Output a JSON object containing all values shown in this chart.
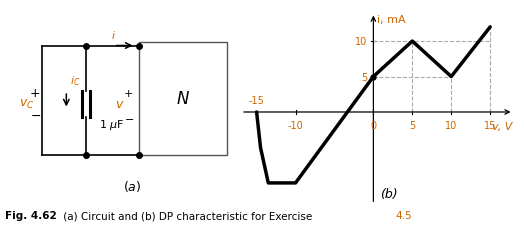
{
  "curve_v": [
    -15,
    -14,
    -12,
    -10,
    0,
    5,
    10,
    15
  ],
  "curve_i": [
    0,
    -2,
    -8,
    -10,
    5,
    10,
    5,
    12
  ],
  "xlim": [
    -17,
    18
  ],
  "ylim": [
    -13,
    14
  ],
  "xticks_pos": [
    -10,
    0,
    5,
    10,
    15
  ],
  "xtick_labels": [
    "-10",
    "0",
    "5",
    "10",
    "15"
  ],
  "ytick_pos": [
    5,
    10
  ],
  "ytick_labels": [
    "5",
    "10"
  ],
  "neg15_label": "-15",
  "xlabel": "v, V",
  "ylabel": "i, mA",
  "label_b": "(b)",
  "curve_color": "#000000",
  "dashed_color": "#aaaaaa",
  "tick_color": "#cc6600",
  "label_color": "#cc6600",
  "fig_bold": "Fig. 4.62",
  "caption_normal": " (a) Circuit and (b) DP characteristic for Exercise ",
  "caption_orange": "4.5",
  "panel_a_label": "(a)"
}
